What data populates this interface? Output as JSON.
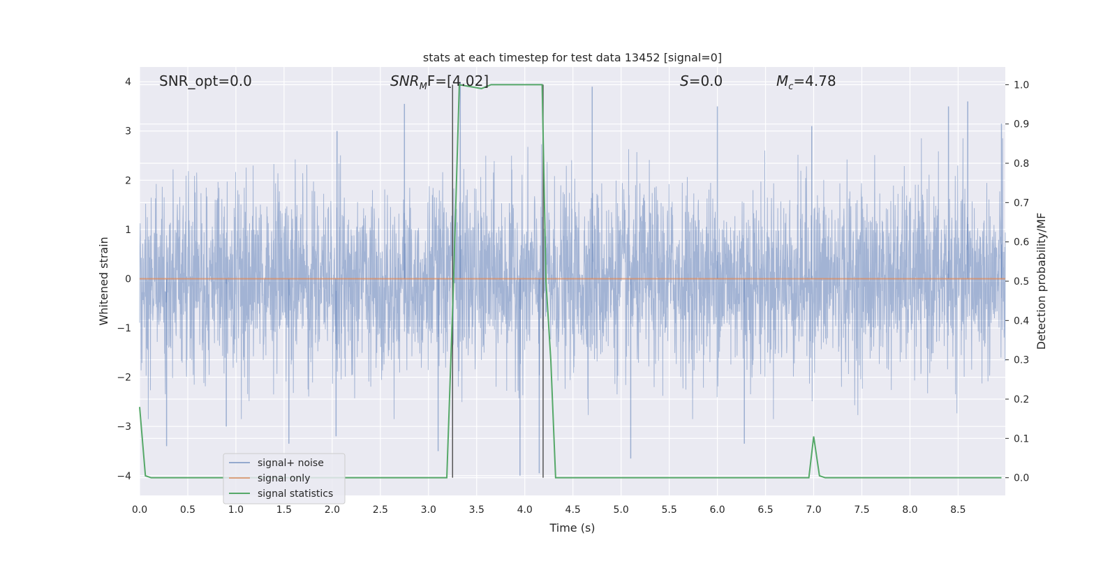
{
  "chart_data": {
    "type": "line",
    "title": "stats at each timestep for test data 13452 [signal=0]",
    "xlabel": "Time (s)",
    "ylabel": "Whitened strain",
    "y2label": "Detection probability/MF",
    "xlim": [
      0.0,
      8.99
    ],
    "ylim": [
      -4.4,
      4.3
    ],
    "y2lim": [
      -0.045,
      1.045
    ],
    "xticks": [
      "0.0",
      "0.5",
      "1.0",
      "1.5",
      "2.0",
      "2.5",
      "3.0",
      "3.5",
      "4.0",
      "4.5",
      "5.0",
      "5.5",
      "6.0",
      "6.5",
      "7.0",
      "7.5",
      "8.0",
      "8.5"
    ],
    "yticks": [
      "4",
      "3",
      "2",
      "1",
      "0",
      "−1",
      "−2",
      "−3",
      "−4"
    ],
    "y2ticks": [
      "1.0",
      "0.9",
      "0.8",
      "0.7",
      "0.6",
      "0.5",
      "0.4",
      "0.3",
      "0.2",
      "0.1",
      "0.0"
    ],
    "grid": true,
    "legend_position": "lower-left",
    "annotations": {
      "snr_opt": "SNR_opt=0.0",
      "snr_mf_main": "SNR",
      "snr_mf_sub": "M",
      "snr_mf_rest": "F=[4.02]",
      "s_main": "S",
      "s_rest": "=0.0",
      "mc_main": "M",
      "mc_sub": "c",
      "mc_rest": "=4.78"
    },
    "vlines_x": [
      3.25,
      4.19
    ],
    "series": [
      {
        "name": "signal+ noise",
        "color": "#4c72b0",
        "axis": "left",
        "kind": "noise",
        "envelope_typical": 1.5,
        "envelope_max": 4.0,
        "spikes": [
          {
            "x": 0.28,
            "y": -3.4
          },
          {
            "x": 0.9,
            "y": -3.0
          },
          {
            "x": 1.55,
            "y": -3.35
          },
          {
            "x": 2.05,
            "y": 3.0
          },
          {
            "x": 2.04,
            "y": -3.2
          },
          {
            "x": 2.75,
            "y": 3.55
          },
          {
            "x": 3.1,
            "y": -3.5
          },
          {
            "x": 3.33,
            "y": 4.0
          },
          {
            "x": 3.95,
            "y": -4.0
          },
          {
            "x": 4.15,
            "y": -3.95
          },
          {
            "x": 4.7,
            "y": 3.9
          },
          {
            "x": 5.1,
            "y": -3.65
          },
          {
            "x": 6.0,
            "y": 3.5
          },
          {
            "x": 6.28,
            "y": -3.35
          },
          {
            "x": 6.98,
            "y": 3.1
          },
          {
            "x": 8.4,
            "y": 3.5
          },
          {
            "x": 8.6,
            "y": 3.6
          },
          {
            "x": 8.95,
            "y": 3.15
          }
        ]
      },
      {
        "name": "signal only",
        "color": "#dd8452",
        "axis": "left",
        "kind": "line",
        "x": [
          0.0,
          8.99
        ],
        "y": [
          0.0,
          0.0
        ]
      },
      {
        "name": "signal statistics",
        "color": "#55a868",
        "axis": "right",
        "kind": "line",
        "x": [
          0.0,
          0.06,
          0.12,
          3.19,
          3.26,
          3.32,
          3.55,
          3.65,
          4.18,
          4.22,
          4.27,
          4.32,
          6.95,
          7.0,
          7.06,
          7.12,
          8.95
        ],
        "y": [
          0.18,
          0.005,
          0.0,
          0.0,
          0.5,
          1.0,
          0.99,
          1.0,
          1.0,
          0.5,
          0.3,
          0.0,
          0.0,
          0.105,
          0.005,
          0.0,
          0.0
        ]
      }
    ]
  }
}
